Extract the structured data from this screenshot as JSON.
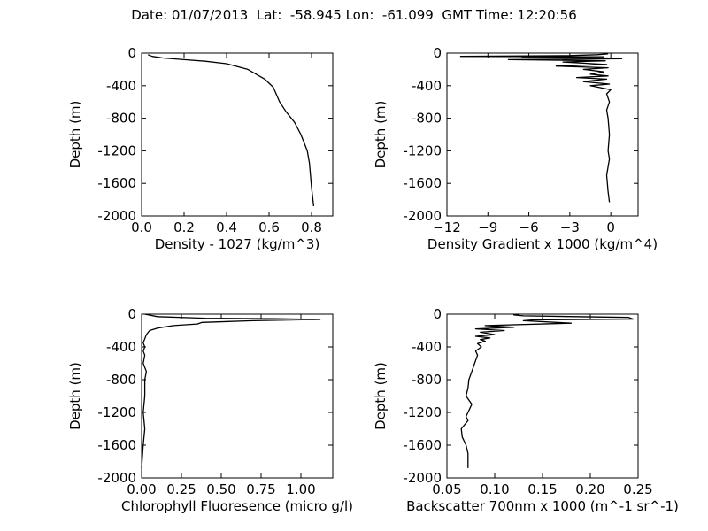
{
  "suptitle": "Date: 01/07/2013  Lat:  -58.945 Lon:  -61.099  GMT Time: 12:20:56",
  "chart_data": [
    {
      "type": "line",
      "title": "",
      "xlabel": "Density - 1027 (kg/m^3)",
      "ylabel": "Depth (m)",
      "xlim": [
        0.0,
        0.9
      ],
      "ylim": [
        -2000,
        0
      ],
      "xticks": [
        "0.0",
        "0.2",
        "0.4",
        "0.6",
        "0.8"
      ],
      "yticks": [
        "0",
        "-400",
        "-800",
        "-1200",
        "-1600",
        "-2000"
      ],
      "grid": false,
      "series": [
        {
          "color": "#000000",
          "x": [
            0.03,
            0.05,
            0.1,
            0.2,
            0.3,
            0.4,
            0.5,
            0.58,
            0.62,
            0.65,
            0.68,
            0.72,
            0.75,
            0.78,
            0.79,
            0.8,
            0.81
          ],
          "y": [
            -20,
            -40,
            -60,
            -80,
            -100,
            -130,
            -200,
            -320,
            -420,
            -600,
            -720,
            -850,
            -1000,
            -1200,
            -1350,
            -1650,
            -1880
          ]
        }
      ]
    },
    {
      "type": "line",
      "title": "",
      "xlabel": "Density Gradient x 1000 (kg/m^4)",
      "ylabel": "Depth (m)",
      "xlim": [
        -12,
        2
      ],
      "ylim": [
        -2000,
        0
      ],
      "xticks": [
        "−12",
        "−9",
        "−6",
        "−3",
        "0"
      ],
      "yticks": [
        "0",
        "-400",
        "-800",
        "-1200",
        "-1600",
        "-2000"
      ],
      "grid": false,
      "series": [
        {
          "color": "#000000",
          "x": [
            -0.2,
            -1,
            -3,
            -11,
            -0.5,
            -6.5,
            -0.3,
            0.8,
            -7.5,
            -0.4,
            -3.5,
            -0.3,
            -4,
            -0.2,
            -2,
            -0.5,
            -1.5,
            -0.2,
            -2.5,
            -0.3,
            -2,
            -0.1,
            -1.5,
            0.0,
            -0.3,
            -0.1,
            -0.3,
            -0.2,
            -0.1,
            -0.2,
            -0.1,
            -0.3,
            -0.2,
            -0.1
          ],
          "y": [
            -10,
            -20,
            -30,
            -40,
            -45,
            -50,
            -60,
            -70,
            -80,
            -95,
            -110,
            -140,
            -160,
            -180,
            -200,
            -230,
            -260,
            -280,
            -300,
            -320,
            -350,
            -380,
            -400,
            -450,
            -500,
            -600,
            -700,
            -800,
            -1000,
            -1200,
            -1300,
            -1500,
            -1700,
            -1830
          ]
        }
      ]
    },
    {
      "type": "line",
      "title": "",
      "xlabel": "Chlorophyll Fluoresence (micro g/l)",
      "ylabel": "Depth (m)",
      "xlim": [
        0.0,
        1.2
      ],
      "ylim": [
        -2000,
        0
      ],
      "xticks": [
        "0.00",
        "0.25",
        "0.50",
        "0.75",
        "1.00"
      ],
      "yticks": [
        "0",
        "-400",
        "-800",
        "-1200",
        "-1600",
        "-2000"
      ],
      "grid": false,
      "series": [
        {
          "color": "#000000",
          "x": [
            0.02,
            0.1,
            0.4,
            0.85,
            1.12,
            0.7,
            0.38,
            0.35,
            0.2,
            0.1,
            0.05,
            0.03,
            0.02,
            0.01,
            0.02,
            0.01,
            0.02,
            0.01,
            0.03,
            0.02,
            0.02,
            0.01,
            0.02,
            0.01,
            0.0
          ],
          "y": [
            0,
            -30,
            -50,
            -55,
            -65,
            -80,
            -100,
            -120,
            -140,
            -170,
            -200,
            -250,
            -300,
            -350,
            -400,
            -450,
            -500,
            -600,
            -700,
            -800,
            -1000,
            -1200,
            -1400,
            -1600,
            -1880
          ]
        }
      ]
    },
    {
      "type": "line",
      "title": "",
      "xlabel": "Backscatter 700nm x 1000 (m^-1 sr^-1)",
      "ylabel": "Depth (m)",
      "xlim": [
        0.05,
        0.25
      ],
      "ylim": [
        -2000,
        0
      ],
      "xticks": [
        "0.05",
        "0.10",
        "0.15",
        "0.20",
        "0.25"
      ],
      "yticks": [
        "0",
        "-400",
        "-800",
        "-1200",
        "-1600",
        "-2000"
      ],
      "grid": false,
      "series": [
        {
          "color": "#000000",
          "x": [
            0.125,
            0.12,
            0.13,
            0.24,
            0.245,
            0.14,
            0.13,
            0.18,
            0.09,
            0.12,
            0.08,
            0.11,
            0.085,
            0.1,
            0.08,
            0.095,
            0.085,
            0.09,
            0.082,
            0.086,
            0.08,
            0.082,
            0.079,
            0.076,
            0.073,
            0.072,
            0.07,
            0.076,
            0.072,
            0.07,
            0.072,
            0.065,
            0.066,
            0.07,
            0.072,
            0.072
          ],
          "y": [
            0,
            -10,
            -20,
            -40,
            -60,
            -70,
            -80,
            -110,
            -140,
            -160,
            -180,
            -200,
            -220,
            -250,
            -270,
            -290,
            -310,
            -330,
            -360,
            -400,
            -450,
            -500,
            -600,
            -700,
            -800,
            -900,
            -1000,
            -1100,
            -1200,
            -1250,
            -1300,
            -1400,
            -1500,
            -1600,
            -1700,
            -1880
          ]
        }
      ]
    }
  ]
}
